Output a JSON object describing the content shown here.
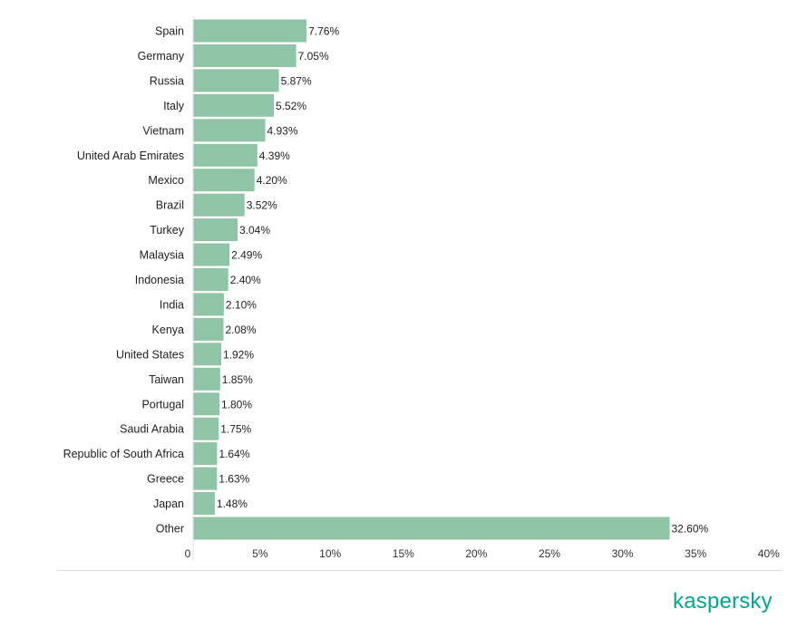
{
  "chart_data": {
    "type": "bar",
    "orientation": "horizontal",
    "categories": [
      "Spain",
      "Germany",
      "Russia",
      "Italy",
      "Vietnam",
      "United Arab Emirates",
      "Mexico",
      "Brazil",
      "Turkey",
      "Malaysia",
      "Indonesia",
      "India",
      "Kenya",
      "United States",
      "Taiwan",
      "Portugal",
      "Saudi Arabia",
      "Republic of South Africa",
      "Greece",
      "Japan",
      "Other"
    ],
    "values": [
      7.76,
      7.05,
      5.87,
      5.52,
      4.93,
      4.39,
      4.2,
      3.52,
      3.04,
      2.49,
      2.4,
      2.1,
      2.08,
      1.92,
      1.85,
      1.8,
      1.75,
      1.64,
      1.63,
      1.48,
      32.6
    ],
    "value_labels": [
      "7.76%",
      "7.05%",
      "5.87%",
      "5.52%",
      "4.93%",
      "4.39%",
      "4.20%",
      "3.52%",
      "3.04%",
      "2.49%",
      "2.40%",
      "2.10%",
      "2.08%",
      "1.92%",
      "1.85%",
      "1.80%",
      "1.75%",
      "1.64%",
      "1.63%",
      "1.48%",
      "32.60%"
    ],
    "xlim": [
      0,
      40
    ],
    "x_ticks": [
      0,
      5,
      10,
      15,
      20,
      25,
      30,
      35,
      40
    ],
    "x_tick_labels": [
      "0",
      "5%",
      "10%",
      "15%",
      "20%",
      "25%",
      "30%",
      "35%",
      "40%"
    ],
    "title": "",
    "xlabel": "",
    "ylabel": "",
    "grid": false,
    "bar_color": "#8fc4a7"
  },
  "brand": {
    "logo_text": "kaspersky",
    "logo_color": "#00a88e"
  }
}
